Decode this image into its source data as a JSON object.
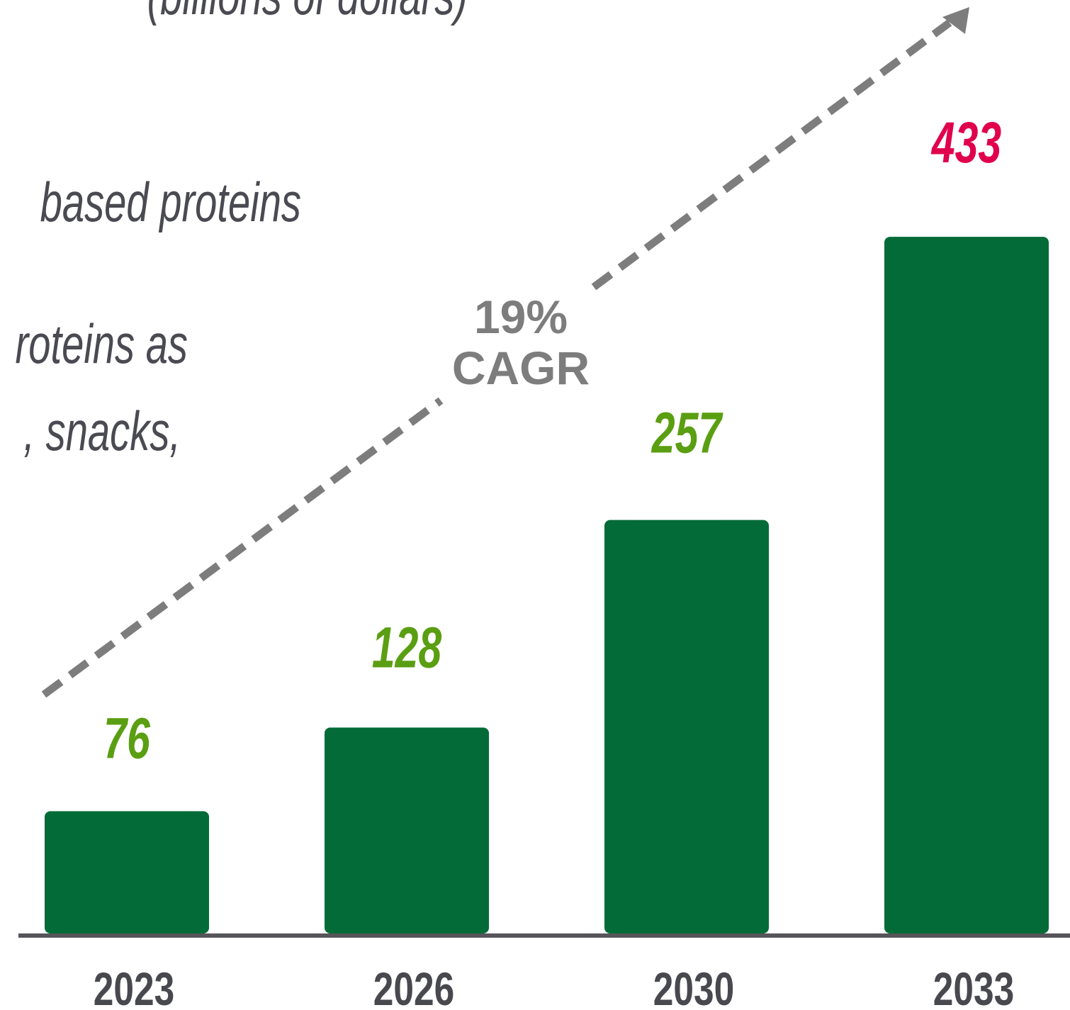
{
  "chart_data": {
    "type": "bar",
    "subtitle": "(billions of dollars)",
    "text_fragments": [
      "based proteins",
      "roteins as",
      ", snacks,"
    ],
    "annotation": [
      "19%",
      "CAGR"
    ],
    "categories": [
      "2023",
      "2026",
      "2030",
      "2033"
    ],
    "values": [
      76,
      128,
      257,
      433
    ],
    "color": "#036b37",
    "label_colors": [
      "#5a9e12",
      "#5a9e12",
      "#5a9e12",
      "#e0004d"
    ]
  }
}
